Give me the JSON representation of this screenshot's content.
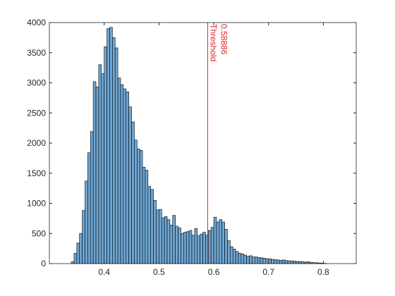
{
  "chart_data": {
    "type": "histogram",
    "bins": [
      0.34,
      0.345,
      0.35,
      0.355,
      0.36,
      0.365,
      0.37,
      0.375,
      0.38,
      0.385,
      0.39,
      0.395,
      0.4,
      0.405,
      0.41,
      0.415,
      0.42,
      0.425,
      0.43,
      0.435,
      0.44,
      0.445,
      0.45,
      0.455,
      0.46,
      0.465,
      0.47,
      0.475,
      0.48,
      0.485,
      0.49,
      0.495,
      0.5,
      0.505,
      0.51,
      0.515,
      0.52,
      0.525,
      0.53,
      0.535,
      0.54,
      0.545,
      0.55,
      0.555,
      0.56,
      0.565,
      0.57,
      0.575,
      0.58,
      0.585,
      0.59,
      0.595,
      0.6,
      0.605,
      0.61,
      0.615,
      0.62,
      0.625,
      0.63,
      0.635,
      0.64,
      0.645,
      0.65,
      0.655,
      0.66,
      0.665,
      0.67,
      0.675,
      0.68,
      0.685,
      0.69,
      0.695,
      0.7,
      0.705,
      0.71,
      0.715,
      0.72,
      0.725,
      0.73,
      0.735,
      0.74,
      0.745,
      0.75,
      0.755,
      0.76,
      0.765,
      0.77,
      0.775,
      0.78,
      0.785,
      0.79,
      0.795,
      0.8,
      0.805
    ],
    "values": [
      30,
      170,
      340,
      500,
      880,
      1370,
      1840,
      2190,
      3020,
      2930,
      3300,
      3150,
      3600,
      3900,
      3920,
      3750,
      3580,
      3080,
      2970,
      2900,
      2850,
      2600,
      2350,
      2050,
      1900,
      1880,
      1600,
      1550,
      1280,
      1230,
      1050,
      890,
      900,
      760,
      780,
      730,
      640,
      800,
      620,
      590,
      500,
      520,
      530,
      550,
      470,
      580,
      460,
      490,
      520,
      470,
      550,
      600,
      770,
      690,
      730,
      690,
      570,
      380,
      280,
      240,
      200,
      170,
      160,
      140,
      120,
      130,
      110,
      110,
      100,
      95,
      90,
      80,
      80,
      70,
      65,
      60,
      55,
      60,
      50,
      45,
      45,
      40,
      35,
      35,
      30,
      25,
      30,
      20,
      15,
      15,
      10,
      8,
      5
    ],
    "color": "#6fa6d3",
    "threshold": {
      "value": 0.58886,
      "label": "Threshold",
      "color": "#d62728"
    },
    "xlim": [
      0.3,
      0.86
    ],
    "xticks": [
      0.4,
      0.5,
      0.6,
      0.7,
      0.8
    ],
    "ylim": [
      0,
      4000
    ],
    "yticks": [
      0,
      500,
      1000,
      1500,
      2000,
      2500,
      3000,
      3500,
      4000
    ]
  }
}
